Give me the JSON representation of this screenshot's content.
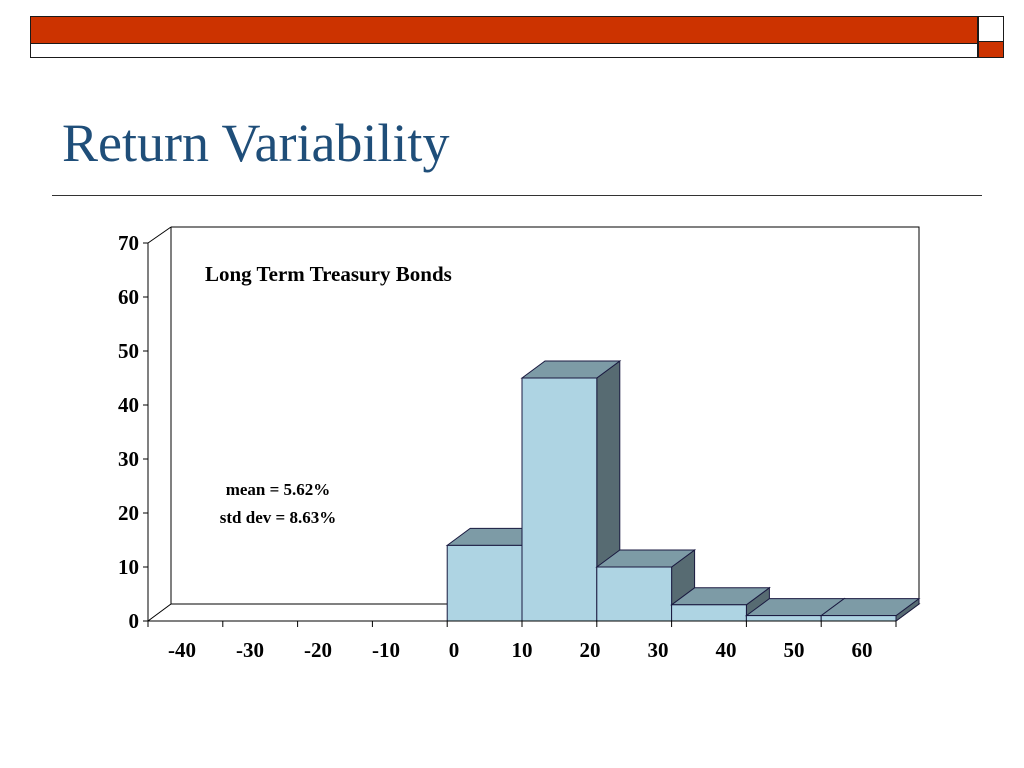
{
  "slide": {
    "title": "Return Variability"
  },
  "chart_data": {
    "type": "bar",
    "style": "3d-histogram",
    "title": "Long Term Treasury Bonds",
    "annotations": [
      "mean = 5.62%",
      "std dev = 8.63%"
    ],
    "x_ticks": [
      "-40",
      "-30",
      "-20",
      "-10",
      "0",
      "10",
      "20",
      "30",
      "40",
      "50",
      "60"
    ],
    "x_range": [
      -40,
      60
    ],
    "y_ticks": [
      "0",
      "10",
      "20",
      "30",
      "40",
      "50",
      "60",
      "70"
    ],
    "ylim": [
      0,
      70
    ],
    "bins": [
      {
        "start": 0,
        "end": 10,
        "value": 14
      },
      {
        "start": 10,
        "end": 20,
        "value": 45
      },
      {
        "start": 20,
        "end": 30,
        "value": 10
      },
      {
        "start": 30,
        "end": 40,
        "value": 3
      },
      {
        "start": 40,
        "end": 50,
        "value": 1
      },
      {
        "start": 50,
        "end": 60,
        "value": 1
      }
    ],
    "colors": {
      "front": "#aed4e3",
      "top": "#7d9ba6",
      "side": "#576b72",
      "outline": "#1a1a40"
    },
    "xlabel": "",
    "ylabel": "",
    "grid": false
  }
}
